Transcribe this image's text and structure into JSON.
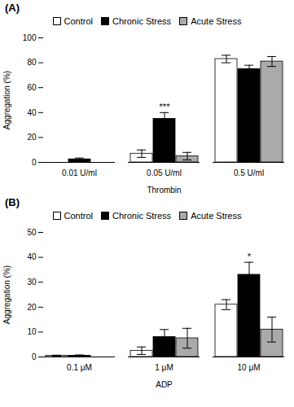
{
  "chart_data": [
    {
      "type": "bar",
      "title": "(A)",
      "xlabel": "Thrombin",
      "ylabel": "Aggregation (%)",
      "categories": [
        "0.01 U/ml",
        "0.05 U/ml",
        "0.5 U/ml"
      ],
      "series": [
        {
          "name": "Control",
          "color": "white",
          "values": [
            0,
            7,
            83
          ],
          "errors": [
            0,
            3,
            3
          ]
        },
        {
          "name": "Chronic Stress",
          "color": "black",
          "values": [
            2.5,
            35,
            75
          ],
          "errors": [
            1,
            5,
            3
          ]
        },
        {
          "name": "Acute Stress",
          "color": "#aaaaaa",
          "values": [
            0,
            5,
            81
          ],
          "errors": [
            0,
            3,
            4
          ]
        }
      ],
      "annotations": [
        {
          "text": "***",
          "category": "0.05 U/ml",
          "series": "Chronic Stress"
        }
      ],
      "ylim": [
        0,
        100
      ],
      "yticks": [
        0,
        20,
        40,
        60,
        80,
        100
      ],
      "grid": false,
      "legend": "upper center"
    },
    {
      "type": "bar",
      "title": "(B)",
      "xlabel": "ADP",
      "ylabel": "Aggregation (%)",
      "categories": [
        "0.1 μM",
        "1 μM",
        "10 μM"
      ],
      "series": [
        {
          "name": "Control",
          "color": "white",
          "values": [
            0.5,
            2.5,
            21
          ],
          "errors": [
            0.2,
            1.5,
            2
          ]
        },
        {
          "name": "Chronic Stress",
          "color": "black",
          "values": [
            0.5,
            8,
            33
          ],
          "errors": [
            0.3,
            3,
            5
          ]
        },
        {
          "name": "Acute Stress",
          "color": "#aaaaaa",
          "values": [
            0,
            7.5,
            11
          ],
          "errors": [
            0,
            4,
            5
          ]
        }
      ],
      "annotations": [
        {
          "text": "*",
          "category": "10 μM",
          "series": "Chronic Stress"
        }
      ],
      "ylim": [
        0,
        50
      ],
      "yticks": [
        0,
        10,
        20,
        30,
        40,
        50
      ],
      "grid": false,
      "legend": "upper center"
    }
  ]
}
